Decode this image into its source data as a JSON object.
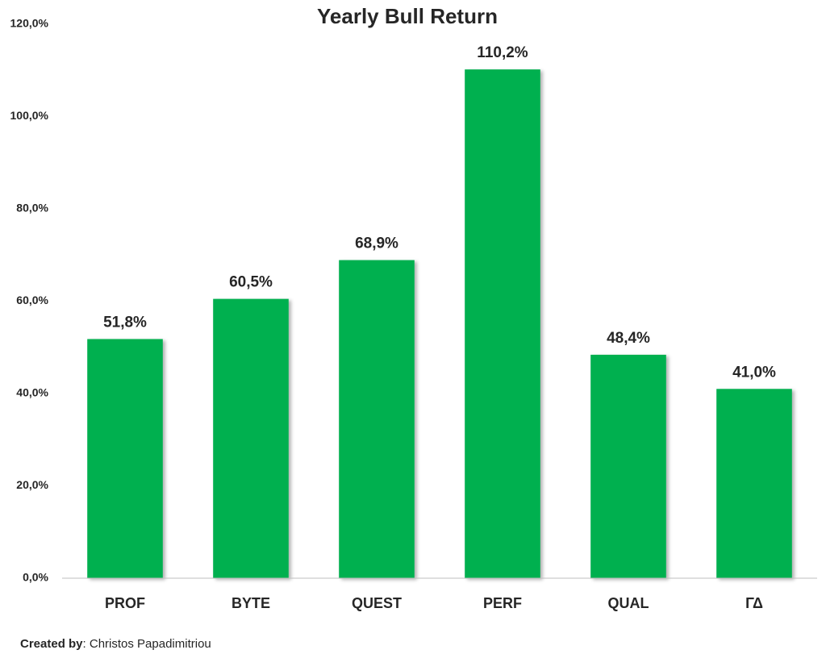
{
  "chart_data": {
    "type": "bar",
    "title": "Yearly Bull Return",
    "categories": [
      "PROF",
      "BYTE",
      "QUEST",
      "PERF",
      "QUAL",
      "ΓΔ"
    ],
    "values": [
      51.8,
      60.5,
      68.9,
      110.2,
      48.4,
      41.0
    ],
    "value_labels": [
      "51,8%",
      "60,5%",
      "68,9%",
      "110,2%",
      "48,4%",
      "41,0%"
    ],
    "color": "#00b050",
    "ylim": [
      0,
      120
    ],
    "yticks": [
      {
        "value": 0,
        "label": "0,0%"
      },
      {
        "value": 20,
        "label": "20,0%"
      },
      {
        "value": 40,
        "label": "40,0%"
      },
      {
        "value": 60,
        "label": "60,0%"
      },
      {
        "value": 80,
        "label": "80,0%"
      },
      {
        "value": 100,
        "label": "100,0%"
      },
      {
        "value": 120,
        "label": "120,0%"
      }
    ],
    "grid": false,
    "credit_label": "Created by",
    "credit_name": ": Christos Papadimitriou"
  }
}
